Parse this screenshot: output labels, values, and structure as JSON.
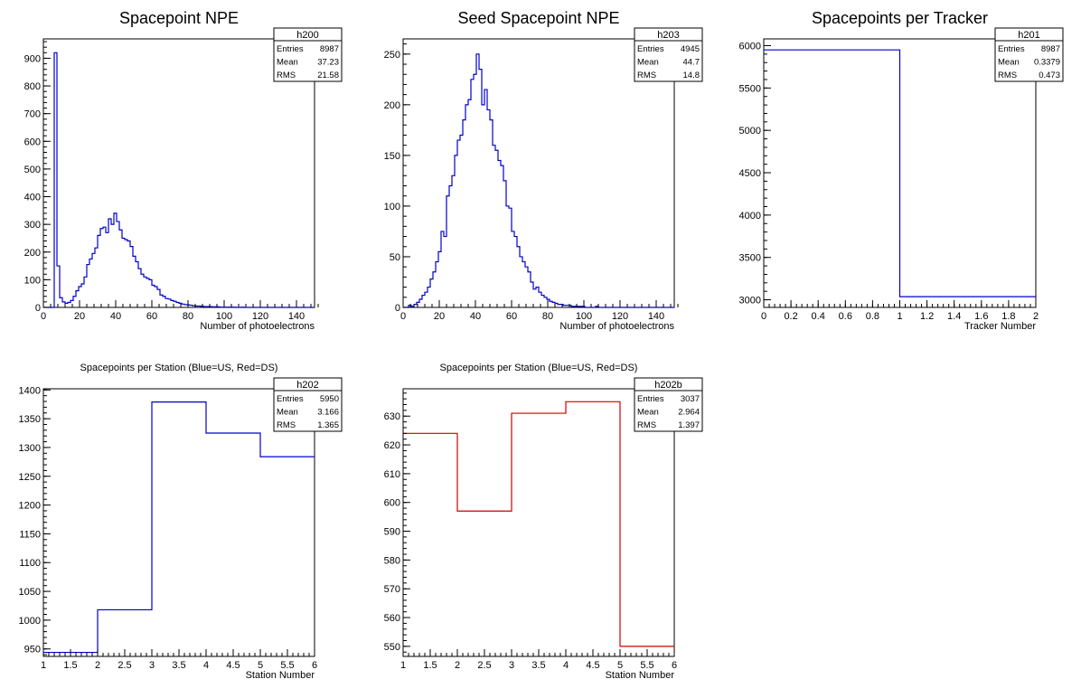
{
  "chart_data": [
    {
      "id": "h200",
      "type": "histogram",
      "title": "Spacepoint NPE",
      "xlabel": "Number of photoelectrons",
      "xlim": [
        0,
        150
      ],
      "ylim": [
        0,
        970
      ],
      "xticks": [
        0,
        20,
        40,
        60,
        80,
        100,
        120,
        140
      ],
      "yticks": [
        0,
        100,
        200,
        300,
        400,
        500,
        600,
        700,
        800,
        900
      ],
      "line_color": "#0000cc",
      "stats": {
        "name": "h200",
        "rows": [
          {
            "label": "Entries",
            "value": "8987"
          },
          {
            "label": "Mean",
            "value": "37.23"
          },
          {
            "label": "RMS",
            "value": "21.58"
          }
        ]
      },
      "x": [
        0,
        1.5,
        3,
        4.5,
        6,
        7.5,
        9,
        10.5,
        12,
        13.5,
        15,
        16.5,
        18,
        19.5,
        21,
        22.5,
        24,
        25.5,
        27,
        28.5,
        30,
        31.5,
        33,
        34.5,
        36,
        37.5,
        39,
        40.5,
        42,
        43.5,
        45,
        46.5,
        48,
        49.5,
        51,
        52.5,
        54,
        55.5,
        57,
        58.5,
        60,
        61.5,
        63,
        64.5,
        66,
        67.5,
        69,
        70.5,
        72,
        73.5,
        75,
        76.5,
        78,
        79.5,
        81,
        82.5,
        84,
        85.5,
        87,
        88.5,
        90,
        91.5,
        93,
        94.5,
        96,
        97.5,
        99,
        100.5,
        102,
        103.5,
        105,
        106.5,
        108,
        109.5,
        111,
        112.5,
        114,
        115.5,
        117,
        118.5,
        120,
        121.5,
        123,
        124.5,
        126,
        127.5,
        129,
        130.5,
        132,
        133.5,
        135,
        136.5,
        138,
        139.5,
        141,
        142.5,
        144,
        145.5,
        147,
        148.5,
        150
      ],
      "values": [
        0,
        0,
        0,
        0,
        920,
        150,
        35,
        20,
        15,
        18,
        25,
        40,
        60,
        75,
        85,
        110,
        155,
        175,
        195,
        215,
        260,
        285,
        290,
        270,
        320,
        300,
        340,
        310,
        280,
        250,
        245,
        240,
        220,
        185,
        165,
        140,
        120,
        110,
        105,
        100,
        80,
        75,
        65,
        45,
        40,
        32,
        30,
        25,
        22,
        18,
        15,
        12,
        10,
        9,
        8,
        6,
        5,
        5,
        4,
        3,
        3,
        3,
        2,
        2,
        2,
        1,
        1,
        1,
        1,
        1,
        1,
        0,
        0,
        1,
        0,
        0,
        0,
        0,
        0,
        0,
        0,
        0,
        0,
        0,
        0,
        0,
        0,
        0,
        0,
        0,
        0,
        0,
        0,
        0,
        0,
        0,
        0,
        0,
        0,
        0
      ]
    },
    {
      "id": "h203",
      "type": "histogram",
      "title": "Seed Spacepoint NPE",
      "xlabel": "Number of photoelectrons",
      "xlim": [
        0,
        150
      ],
      "ylim": [
        0,
        265
      ],
      "xticks": [
        0,
        20,
        40,
        60,
        80,
        100,
        120,
        140
      ],
      "yticks": [
        0,
        50,
        100,
        150,
        200,
        250
      ],
      "line_color": "#0000cc",
      "stats": {
        "name": "h203",
        "rows": [
          {
            "label": "Entries",
            "value": "4945"
          },
          {
            "label": "Mean",
            "value": "44.7"
          },
          {
            "label": "RMS",
            "value": "14.8"
          }
        ]
      },
      "x": [
        0,
        1.5,
        3,
        4.5,
        6,
        7.5,
        9,
        10.5,
        12,
        13.5,
        15,
        16.5,
        18,
        19.5,
        21,
        22.5,
        24,
        25.5,
        27,
        28.5,
        30,
        31.5,
        33,
        34.5,
        36,
        37.5,
        39,
        40.5,
        42,
        43.5,
        45,
        46.5,
        48,
        49.5,
        51,
        52.5,
        54,
        55.5,
        57,
        58.5,
        60,
        61.5,
        63,
        64.5,
        66,
        67.5,
        69,
        70.5,
        72,
        73.5,
        75,
        76.5,
        78,
        79.5,
        81,
        82.5,
        84,
        85.5,
        87,
        88.5,
        90,
        91.5,
        93,
        94.5,
        96,
        97.5,
        99,
        100.5,
        102,
        103.5,
        105,
        106.5,
        108,
        109.5,
        111,
        112.5,
        114,
        115.5,
        117,
        118.5,
        120,
        121.5,
        123,
        124.5,
        126,
        127.5,
        129,
        130.5,
        132,
        133.5,
        135,
        136.5,
        138,
        139.5,
        141,
        142.5,
        144,
        145.5,
        147,
        148.5,
        150
      ],
      "values": [
        0,
        0,
        2,
        1,
        3,
        5,
        8,
        12,
        15,
        20,
        28,
        35,
        45,
        55,
        75,
        70,
        110,
        120,
        130,
        150,
        165,
        170,
        185,
        200,
        205,
        225,
        230,
        250,
        235,
        200,
        215,
        195,
        185,
        160,
        155,
        145,
        140,
        125,
        100,
        98,
        75,
        70,
        60,
        50,
        45,
        40,
        35,
        25,
        18,
        20,
        15,
        12,
        10,
        8,
        6,
        5,
        4,
        3,
        3,
        2,
        2,
        2,
        1,
        1,
        1,
        1,
        1,
        0,
        0,
        0,
        0,
        1,
        0,
        0,
        0,
        0,
        0,
        0,
        0,
        0,
        0,
        0,
        0,
        0,
        0,
        0,
        0,
        0,
        0,
        0,
        0,
        0,
        0,
        0,
        0,
        0,
        0,
        0,
        0,
        0
      ]
    },
    {
      "id": "h201",
      "type": "histogram",
      "title": "Spacepoints per Tracker",
      "xlabel": "Tracker Number",
      "xlim": [
        0,
        2
      ],
      "ylim": [
        2910,
        6080
      ],
      "xticks": [
        0,
        0.2,
        0.4,
        0.6,
        0.8,
        1,
        1.2,
        1.4,
        1.6,
        1.8,
        2
      ],
      "yticks": [
        3000,
        3500,
        4000,
        4500,
        5000,
        5500,
        6000
      ],
      "line_color": "#0000cc",
      "stats": {
        "name": "h201",
        "rows": [
          {
            "label": "Entries",
            "value": "8987"
          },
          {
            "label": "Mean",
            "value": "0.3379"
          },
          {
            "label": "RMS",
            "value": "0.473"
          }
        ]
      },
      "x": [
        0,
        1,
        2
      ],
      "values": [
        5950,
        3037
      ]
    },
    {
      "id": "h202",
      "type": "histogram",
      "title": "Spacepoints per Station (Blue=US, Red=DS)",
      "xlabel": "Station Number",
      "xlim": [
        1,
        6
      ],
      "ylim": [
        937,
        1402
      ],
      "xticks": [
        1,
        1.5,
        2,
        2.5,
        3,
        3.5,
        4,
        4.5,
        5,
        5.5,
        6
      ],
      "yticks": [
        950,
        1000,
        1050,
        1100,
        1150,
        1200,
        1250,
        1300,
        1350,
        1400
      ],
      "line_color": "#0000cc",
      "stats": {
        "name": "h202",
        "rows": [
          {
            "label": "Entries",
            "value": "5950"
          },
          {
            "label": "Mean",
            "value": "3.166"
          },
          {
            "label": "RMS",
            "value": "1.365"
          }
        ]
      },
      "x": [
        1,
        2,
        3,
        4,
        5,
        6
      ],
      "values": [
        944,
        1018,
        1379,
        1325,
        1284
      ]
    },
    {
      "id": "h202b",
      "type": "histogram",
      "title": "Spacepoints per Station (Blue=US, Red=DS)",
      "xlabel": "Station Number",
      "xlim": [
        1,
        6
      ],
      "ylim": [
        546.5,
        639.5
      ],
      "xticks": [
        1,
        1.5,
        2,
        2.5,
        3,
        3.5,
        4,
        4.5,
        5,
        5.5,
        6
      ],
      "yticks": [
        550,
        560,
        570,
        580,
        590,
        600,
        610,
        620,
        630
      ],
      "line_color": "#cc0000",
      "stats": {
        "name": "h202b",
        "rows": [
          {
            "label": "Entries",
            "value": "3037"
          },
          {
            "label": "Mean",
            "value": "2.964"
          },
          {
            "label": "RMS",
            "value": "1.397"
          }
        ]
      },
      "x": [
        1,
        2,
        3,
        4,
        5,
        6
      ],
      "values": [
        624,
        597,
        631,
        635,
        550
      ]
    }
  ]
}
